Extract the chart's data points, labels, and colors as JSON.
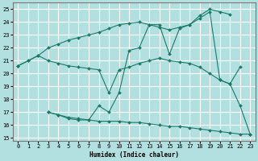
{
  "xlabel": "Humidex (Indice chaleur)",
  "xlim": [
    -0.5,
    23.5
  ],
  "ylim": [
    14.8,
    25.5
  ],
  "yticks": [
    15,
    16,
    17,
    18,
    19,
    20,
    21,
    22,
    23,
    24,
    25
  ],
  "xticks": [
    0,
    1,
    2,
    3,
    4,
    5,
    6,
    7,
    8,
    9,
    10,
    11,
    12,
    13,
    14,
    15,
    16,
    17,
    18,
    19,
    20,
    21,
    22,
    23
  ],
  "background_color": "#b2e0e0",
  "grid_color": "#ffffff",
  "line_color": "#1a7a6a",
  "line1_x": [
    0,
    1,
    2,
    3,
    4,
    5,
    6,
    7,
    8,
    9,
    10,
    11,
    12,
    13,
    14,
    15,
    16,
    17,
    18,
    19,
    20,
    21
  ],
  "line1_y": [
    20.6,
    21.0,
    21.4,
    22.0,
    22.3,
    22.6,
    22.8,
    23.0,
    23.2,
    23.5,
    23.8,
    23.9,
    24.0,
    23.8,
    23.6,
    23.4,
    23.6,
    23.8,
    24.5,
    25.0,
    24.8,
    24.6
  ],
  "line2_x": [
    0,
    1,
    2,
    3,
    4,
    5,
    6,
    7,
    8,
    9,
    10,
    11,
    12,
    13,
    14,
    15,
    16,
    17,
    18,
    19,
    20,
    21,
    22
  ],
  "line2_y": [
    20.6,
    21.0,
    21.4,
    21.0,
    20.8,
    20.6,
    20.5,
    20.4,
    20.3,
    18.5,
    20.3,
    20.5,
    20.8,
    21.0,
    21.2,
    21.0,
    20.9,
    20.8,
    20.5,
    20.0,
    19.5,
    19.2,
    20.5
  ],
  "line3_x": [
    3,
    4,
    5,
    6,
    7,
    8,
    9,
    10,
    11,
    12,
    13,
    14,
    15,
    16,
    17,
    18,
    19,
    20,
    21,
    22,
    23
  ],
  "line3_y": [
    17.0,
    16.8,
    16.6,
    16.5,
    16.4,
    17.5,
    17.0,
    18.5,
    21.8,
    22.0,
    23.8,
    23.8,
    21.5,
    23.5,
    23.8,
    24.3,
    24.8,
    19.5,
    19.2,
    17.5,
    15.3
  ],
  "line4_x": [
    3,
    4,
    5,
    6,
    7,
    8,
    9,
    10,
    11,
    12,
    13,
    14,
    15,
    16,
    17,
    18,
    19,
    20,
    21,
    22,
    23
  ],
  "line4_y": [
    17.0,
    16.8,
    16.5,
    16.4,
    16.4,
    16.3,
    16.3,
    16.3,
    16.2,
    16.2,
    16.1,
    16.0,
    15.9,
    15.9,
    15.8,
    15.7,
    15.6,
    15.5,
    15.4,
    15.3,
    15.3
  ]
}
